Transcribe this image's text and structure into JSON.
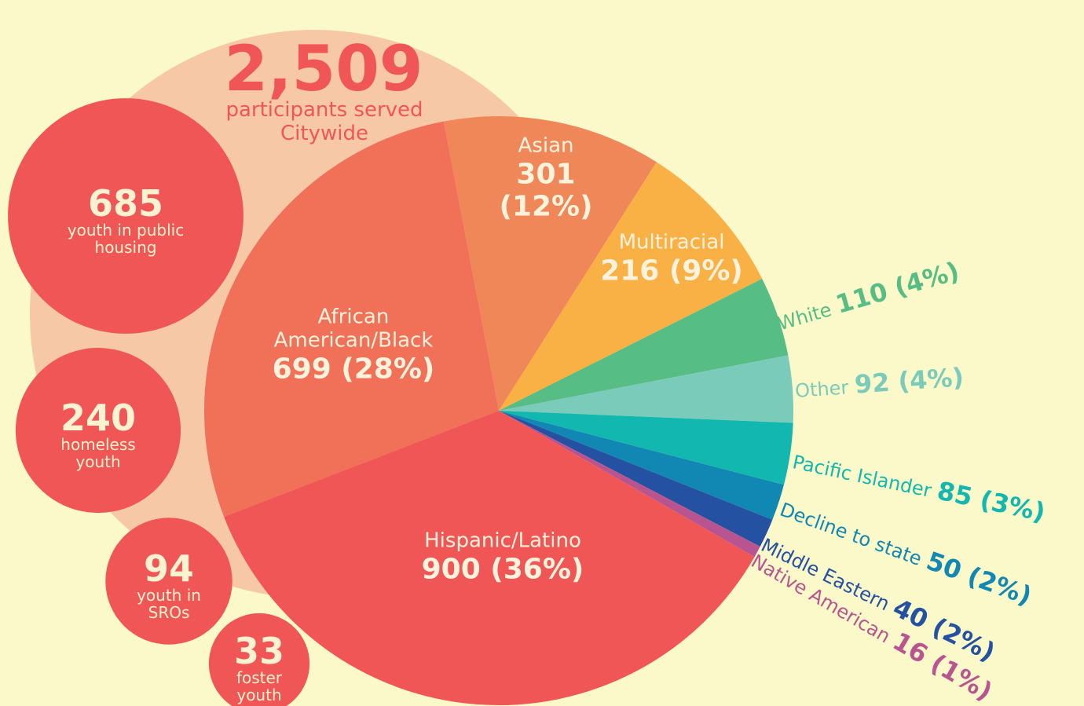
{
  "chart_data": {
    "type": "pie",
    "total": {
      "value": 2509,
      "label": "2,509"
    },
    "subtitle": "participants served Citywide",
    "categories": [
      "Asian",
      "Multiracial",
      "White",
      "Other",
      "Pacific Islander",
      "Decline to state",
      "Middle Eastern",
      "Native American",
      "Hispanic/Latino",
      "African American/Black"
    ],
    "values": [
      301,
      216,
      110,
      92,
      85,
      50,
      40,
      16,
      900,
      699
    ],
    "value_labels": [
      "301 (12%)",
      "216 (9%)",
      "110 (4%)",
      "92 (4%)",
      "85 (3%)",
      "50 (2%)",
      "40 (2%)",
      "16 (1%)",
      "900 (36%)",
      "699 (28%)"
    ],
    "colors": [
      "#ef8758",
      "#f9b044",
      "#56bd85",
      "#7bcbbb",
      "#12b8b0",
      "#1188b3",
      "#2451a1",
      "#b85590",
      "#f05656",
      "#f07058"
    ],
    "bubbles": [
      {
        "value": 685,
        "label": "youth in public housing"
      },
      {
        "value": 240,
        "label": "homeless youth"
      },
      {
        "value": 94,
        "label": "youth in SROs"
      },
      {
        "value": 33,
        "label": "foster youth"
      }
    ],
    "bubble_color": "#f05656"
  }
}
